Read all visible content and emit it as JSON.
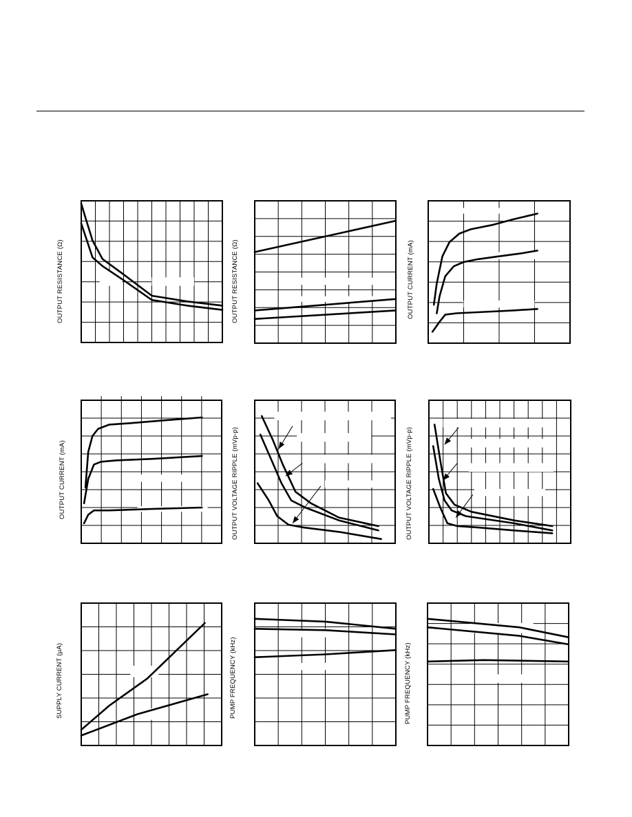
{
  "colors": {
    "ink": "#000000",
    "paper": "#ffffff"
  },
  "charts": [
    {
      "type": "line",
      "ylabel": "OUTPUT RESISTANCE (Ω)",
      "xdiv": 10,
      "ydiv": 7,
      "xticks": false,
      "xlim": [
        0,
        1
      ],
      "ylim": [
        0,
        1
      ],
      "masks": [
        [
          0.13,
          0.5,
          0.16,
          0.1
        ],
        [
          0.5,
          0.46,
          0.3,
          0.06
        ]
      ],
      "series": [
        {
          "x": [
            0,
            0.03,
            0.08,
            0.15,
            0.3,
            0.5,
            0.75,
            1.0
          ],
          "y": [
            0.98,
            0.88,
            0.72,
            0.59,
            0.48,
            0.33,
            0.29,
            0.26
          ]
        },
        {
          "x": [
            0,
            0.03,
            0.08,
            0.15,
            0.3,
            0.5,
            0.75,
            1.0
          ],
          "y": [
            0.84,
            0.75,
            0.6,
            0.54,
            0.44,
            0.3,
            0.26,
            0.23
          ]
        }
      ],
      "arrows": []
    },
    {
      "type": "line",
      "ylabel": "OUTPUT RESISTANCE (Ω)",
      "xdiv": 6,
      "ydiv": 8,
      "xticks": false,
      "xlim": [
        0,
        1
      ],
      "ylim": [
        0,
        1
      ],
      "masks": [
        [
          0.25,
          0.46,
          0.6,
          0.05
        ],
        [
          0.3,
          0.33,
          0.6,
          0.04
        ]
      ],
      "series": [
        {
          "x": [
            0,
            1
          ],
          "y": [
            0.64,
            0.86
          ]
        },
        {
          "x": [
            0,
            1
          ],
          "y": [
            0.23,
            0.31
          ]
        },
        {
          "x": [
            0,
            1
          ],
          "y": [
            0.17,
            0.23
          ]
        }
      ],
      "arrows": []
    },
    {
      "type": "line",
      "ylabel": "OUTPUT CURRENT (mA)",
      "xdiv": 4,
      "ydiv": 7,
      "xticks": false,
      "xlim": [
        0,
        1
      ],
      "ylim": [
        0,
        1
      ],
      "masks": [
        [
          0.06,
          0.95,
          0.6,
          0.04
        ],
        [
          0.35,
          0.64,
          0.5,
          0.05
        ],
        [
          0.25,
          0.3,
          0.5,
          0.05
        ]
      ],
      "series": [
        {
          "x": [
            0.04,
            0.06,
            0.1,
            0.15,
            0.22,
            0.3,
            0.45,
            0.6,
            0.77
          ],
          "y": [
            0.27,
            0.42,
            0.61,
            0.71,
            0.77,
            0.8,
            0.83,
            0.87,
            0.91
          ]
        },
        {
          "x": [
            0.06,
            0.08,
            0.12,
            0.18,
            0.25,
            0.35,
            0.5,
            0.65,
            0.77
          ],
          "y": [
            0.21,
            0.33,
            0.47,
            0.54,
            0.57,
            0.59,
            0.61,
            0.63,
            0.65
          ]
        },
        {
          "x": [
            0.03,
            0.08,
            0.12,
            0.2,
            0.4,
            0.6,
            0.77
          ],
          "y": [
            0.08,
            0.15,
            0.2,
            0.21,
            0.22,
            0.23,
            0.24
          ]
        }
      ],
      "arrows": []
    },
    {
      "type": "line",
      "ylabel": "OUTPUT CURRENT (mA)",
      "xdiv": 7,
      "ydiv": 8,
      "xticks": true,
      "xlim": [
        0,
        1
      ],
      "ylim": [
        0,
        1
      ],
      "masks": [
        [
          0.3,
          0.48,
          0.55,
          0.05
        ],
        [
          0.4,
          0.26,
          0.5,
          0.04
        ]
      ],
      "series": [
        {
          "x": [
            0.03,
            0.05,
            0.08,
            0.12,
            0.2,
            0.35,
            0.6,
            0.86
          ],
          "y": [
            0.39,
            0.64,
            0.75,
            0.8,
            0.83,
            0.84,
            0.86,
            0.88
          ]
        },
        {
          "x": [
            0.02,
            0.05,
            0.09,
            0.14,
            0.25,
            0.5,
            0.86
          ],
          "y": [
            0.28,
            0.45,
            0.55,
            0.57,
            0.58,
            0.59,
            0.61
          ]
        },
        {
          "x": [
            0.02,
            0.05,
            0.09,
            0.2,
            0.5,
            0.86
          ],
          "y": [
            0.14,
            0.2,
            0.23,
            0.23,
            0.24,
            0.25
          ]
        }
      ],
      "arrows": []
    },
    {
      "type": "line",
      "ylabel": "OUTPUT VOLTAGE RIPPLE (mVp-p)",
      "xdiv": 6,
      "ydiv": 8,
      "xticks": false,
      "xlim": [
        0,
        1
      ],
      "ylim": [
        0,
        1
      ],
      "masks": [
        [
          0.14,
          0.92,
          0.83,
          0.06
        ],
        [
          0.3,
          0.77,
          0.53,
          0.06
        ],
        [
          0.36,
          0.62,
          0.6,
          0.06
        ],
        [
          0.5,
          0.44,
          0.4,
          0.05
        ]
      ],
      "series": [
        {
          "x": [
            0.05,
            0.13,
            0.2,
            0.29,
            0.4,
            0.6,
            0.88
          ],
          "y": [
            0.89,
            0.72,
            0.55,
            0.36,
            0.28,
            0.18,
            0.12
          ]
        },
        {
          "x": [
            0.04,
            0.12,
            0.19,
            0.26,
            0.36,
            0.6,
            0.88
          ],
          "y": [
            0.76,
            0.58,
            0.42,
            0.3,
            0.25,
            0.16,
            0.09
          ]
        },
        {
          "x": [
            0.02,
            0.1,
            0.16,
            0.24,
            0.35,
            0.6,
            0.9
          ],
          "y": [
            0.42,
            0.3,
            0.19,
            0.13,
            0.11,
            0.08,
            0.03
          ]
        }
      ],
      "arrows": [
        [
          0.27,
          0.82,
          0.17,
          0.66
        ],
        [
          0.34,
          0.56,
          0.22,
          0.47
        ],
        [
          0.47,
          0.4,
          0.27,
          0.14
        ]
      ]
    },
    {
      "type": "line",
      "ylabel": "OUTPUT VOLTAGE RIPPLE (mVp-p)",
      "xdiv": 10,
      "ydiv": 8,
      "xticks": false,
      "xlim": [
        0,
        1
      ],
      "ylim": [
        0,
        1
      ],
      "masks": [
        [
          0.1,
          0.87,
          0.75,
          0.06
        ],
        [
          0.24,
          0.73,
          0.6,
          0.06
        ],
        [
          0.28,
          0.56,
          0.6,
          0.06
        ],
        [
          0.32,
          0.38,
          0.5,
          0.05
        ]
      ],
      "series": [
        {
          "x": [
            0.04,
            0.08,
            0.12,
            0.18,
            0.3,
            0.6,
            0.87
          ],
          "y": [
            0.83,
            0.58,
            0.35,
            0.27,
            0.22,
            0.16,
            0.12
          ]
        },
        {
          "x": [
            0.03,
            0.07,
            0.11,
            0.16,
            0.26,
            0.6,
            0.87
          ],
          "y": [
            0.68,
            0.45,
            0.3,
            0.23,
            0.19,
            0.14,
            0.09
          ]
        },
        {
          "x": [
            0.03,
            0.08,
            0.13,
            0.2,
            0.35,
            0.6,
            0.87
          ],
          "y": [
            0.38,
            0.25,
            0.14,
            0.12,
            0.11,
            0.09,
            0.07
          ]
        }
      ],
      "arrows": [
        [
          0.21,
          0.81,
          0.11,
          0.69
        ],
        [
          0.2,
          0.56,
          0.1,
          0.44
        ],
        [
          0.31,
          0.34,
          0.19,
          0.18
        ]
      ]
    },
    {
      "type": "line",
      "ylabel": "SUPPLY CURRENT (μA)",
      "xdiv": 8,
      "ydiv": 6,
      "xticks": false,
      "xlim": [
        0,
        1
      ],
      "ylim": [
        0,
        1
      ],
      "masks": [
        [
          0.35,
          0.56,
          0.2,
          0.08
        ],
        [
          0.38,
          0.26,
          0.2,
          0.08
        ]
      ],
      "series": [
        {
          "x": [
            0,
            0.2,
            0.47,
            0.88
          ],
          "y": [
            0.11,
            0.28,
            0.47,
            0.86
          ]
        },
        {
          "x": [
            0,
            0.4,
            0.9
          ],
          "y": [
            0.07,
            0.22,
            0.36
          ]
        }
      ],
      "arrows": []
    },
    {
      "type": "line",
      "ylabel": "PUMP FREQUENCY (kHz)",
      "xdiv": 6,
      "ydiv": 6,
      "xticks": false,
      "xlim": [
        0,
        1
      ],
      "ylim": [
        0,
        1
      ],
      "masks": [
        [
          0.3,
          0.58,
          0.35,
          0.05
        ],
        [
          0.3,
          0.82,
          0.35,
          0.06
        ]
      ],
      "series": [
        {
          "x": [
            0,
            0.5,
            1
          ],
          "y": [
            0.89,
            0.87,
            0.82
          ]
        },
        {
          "x": [
            0,
            0.5,
            1
          ],
          "y": [
            0.82,
            0.81,
            0.78
          ]
        },
        {
          "x": [
            0,
            0.5,
            1
          ],
          "y": [
            0.62,
            0.64,
            0.67
          ]
        }
      ],
      "arrows": []
    },
    {
      "type": "line",
      "ylabel": "PUMP FREQUENCY (kHz)",
      "xdiv": 6,
      "ydiv": 7,
      "xticks": false,
      "xlim": [
        0,
        1
      ],
      "ylim": [
        0,
        1
      ],
      "masks": [
        [
          0.3,
          0.86,
          0.45,
          0.07
        ],
        [
          0.35,
          0.5,
          0.35,
          0.06
        ]
      ],
      "series": [
        {
          "x": [
            0,
            0.65,
            1
          ],
          "y": [
            0.89,
            0.83,
            0.76
          ]
        },
        {
          "x": [
            0,
            0.65,
            1
          ],
          "y": [
            0.83,
            0.77,
            0.71
          ]
        },
        {
          "x": [
            0,
            0.4,
            1
          ],
          "y": [
            0.59,
            0.6,
            0.59
          ]
        }
      ],
      "arrows": []
    }
  ]
}
